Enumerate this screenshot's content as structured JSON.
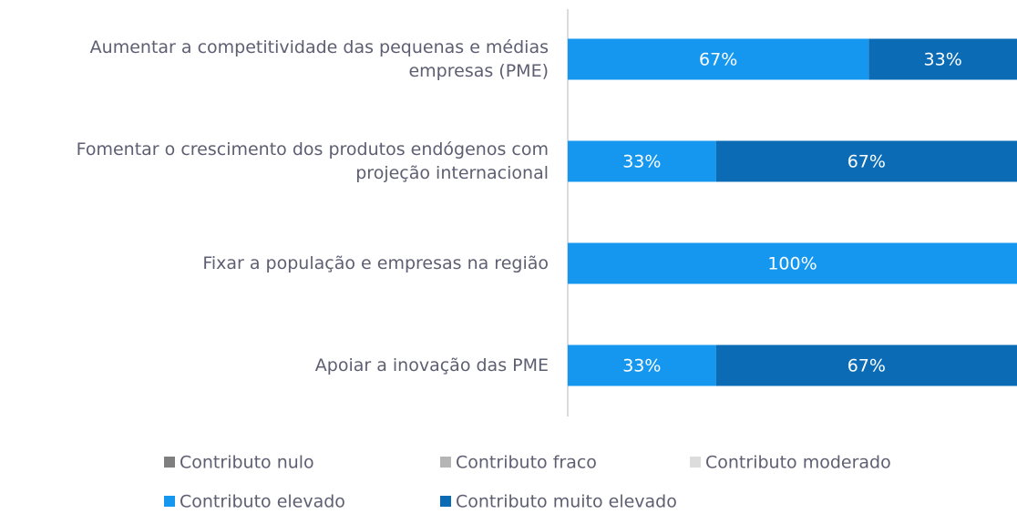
{
  "chart_data": {
    "type": "stacked-barh",
    "categories": [
      "Aumentar a competitividade das pequenas e médias empresas (PME)",
      "Fomentar o crescimento dos produtos endógenos com projeção internacional",
      "Fixar a população e empresas na região",
      "Apoiar a inovação das PME"
    ],
    "xlim": [
      0,
      100
    ],
    "series": [
      {
        "name": "Contributo nulo",
        "color": "#7f7f7f",
        "values": [
          0,
          0,
          0,
          0
        ],
        "value_labels": [
          null,
          null,
          null,
          null
        ]
      },
      {
        "name": "Contributo fraco",
        "color": "#b5b5b5",
        "values": [
          0,
          0,
          0,
          0
        ],
        "value_labels": [
          null,
          null,
          null,
          null
        ]
      },
      {
        "name": "Contributo moderado",
        "color": "#dcdcdc",
        "values": [
          0,
          0,
          0,
          0
        ],
        "value_labels": [
          null,
          null,
          null,
          null
        ]
      },
      {
        "name": "Contributo elevado",
        "color": "#1597f0",
        "values": [
          67,
          33,
          100,
          33
        ],
        "value_labels": [
          "67%",
          "33%",
          "100%",
          "33%"
        ]
      },
      {
        "name": "Contributo muito elevado",
        "color": "#0b6cb5",
        "values": [
          33,
          67,
          0,
          67
        ],
        "value_labels": [
          "33%",
          "67%",
          null,
          "67%"
        ]
      }
    ]
  }
}
